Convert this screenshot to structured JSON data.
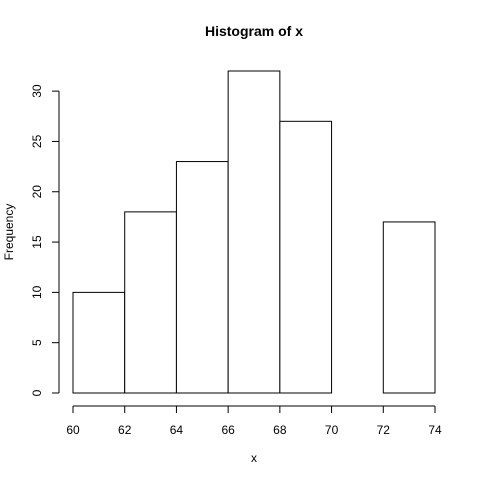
{
  "chart_data": {
    "type": "bar",
    "title": "Histogram of x",
    "xlabel": "x",
    "ylabel": "Frequency",
    "bins": [
      {
        "start": 60,
        "end": 62,
        "count": 10
      },
      {
        "start": 62,
        "end": 64,
        "count": 18
      },
      {
        "start": 64,
        "end": 66,
        "count": 23
      },
      {
        "start": 66,
        "end": 68,
        "count": 32
      },
      {
        "start": 68,
        "end": 70,
        "count": 27
      },
      {
        "start": 70,
        "end": 72,
        "count": 0
      },
      {
        "start": 72,
        "end": 74,
        "count": 17
      }
    ],
    "xlim": [
      60,
      74
    ],
    "ylim": [
      0,
      32
    ],
    "x_ticks": [
      "60",
      "62",
      "64",
      "66",
      "68",
      "70",
      "72",
      "74"
    ],
    "y_ticks": [
      "0",
      "5",
      "10",
      "15",
      "20",
      "25",
      "30"
    ],
    "grid": false,
    "legend": "none",
    "bar_fill": "#ffffff",
    "bar_stroke": "#000000"
  }
}
